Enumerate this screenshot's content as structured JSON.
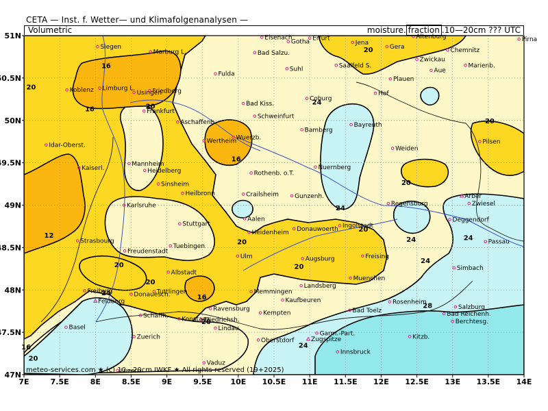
{
  "header": {
    "title": "CETA — Inst. f. Wetter— und Klimafolgenanalysen —",
    "product": "Volumetric",
    "variable_prefix": "moisture.",
    "variable_box": "fraction",
    "variable_suffix": ".10—20cm ??? UTC"
  },
  "footer": "meteo-services.com ★ (c) 10—20cm IWKF ★ All rights reserved (19+2025)",
  "colors": {
    "lt16": "#fbb70f",
    "16to20": "#fcd823",
    "20to24": "#fef8c9",
    "24to28": "#c8f4f6",
    "gt28": "#93e8ec",
    "rivers": "#3a4fcc",
    "borders": "#1a1a1a",
    "city_marker": "#e0208c"
  },
  "axes": {
    "lon_labels": [
      "7E",
      "7.5E",
      "8E",
      "8.5E",
      "9E",
      "9.5E",
      "10E",
      "10.5E",
      "11E",
      "11.5E",
      "12E",
      "12.5E",
      "13E",
      "13.5E",
      "14E"
    ],
    "lat_labels": [
      "51N",
      "50.5N",
      "50N",
      "49.5N",
      "49N",
      "48.5N",
      "48N",
      "47.5N",
      "47N"
    ]
  },
  "contour_labels": [
    {
      "t": "16",
      "lon": 8.15,
      "lat": 50.65
    },
    {
      "t": "20",
      "lon": 7.1,
      "lat": 50.4
    },
    {
      "t": "16",
      "lon": 7.92,
      "lat": 50.14
    },
    {
      "t": "20",
      "lon": 8.77,
      "lat": 50.17
    },
    {
      "t": "16",
      "lon": 9.97,
      "lat": 49.55
    },
    {
      "t": "20",
      "lon": 11.82,
      "lat": 50.84
    },
    {
      "t": "24",
      "lon": 11.1,
      "lat": 50.22
    },
    {
      "t": "20",
      "lon": 13.52,
      "lat": 50.0
    },
    {
      "t": "20",
      "lon": 12.35,
      "lat": 49.27
    },
    {
      "t": "12",
      "lon": 7.35,
      "lat": 48.65
    },
    {
      "t": "24",
      "lon": 11.43,
      "lat": 48.97
    },
    {
      "t": "20",
      "lon": 11.75,
      "lat": 48.72
    },
    {
      "t": "24",
      "lon": 12.42,
      "lat": 48.6
    },
    {
      "t": "24",
      "lon": 13.22,
      "lat": 48.62
    },
    {
      "t": "20",
      "lon": 10.05,
      "lat": 48.57
    },
    {
      "t": "20",
      "lon": 8.33,
      "lat": 48.3
    },
    {
      "t": "20",
      "lon": 10.85,
      "lat": 48.28
    },
    {
      "t": "24",
      "lon": 12.62,
      "lat": 48.35
    },
    {
      "t": "20",
      "lon": 8.77,
      "lat": 48.1
    },
    {
      "t": "16",
      "lon": 9.49,
      "lat": 47.92
    },
    {
      "t": "24",
      "lon": 8.15,
      "lat": 47.97
    },
    {
      "t": "28",
      "lon": 12.65,
      "lat": 47.82
    },
    {
      "t": "20",
      "lon": 9.55,
      "lat": 47.63
    },
    {
      "t": "24",
      "lon": 10.91,
      "lat": 47.35
    },
    {
      "t": "16",
      "lon": 7.03,
      "lat": 47.33
    },
    {
      "t": "20",
      "lon": 7.13,
      "lat": 47.2
    }
  ],
  "cities": [
    {
      "n": "Eisenach",
      "lon": 10.33,
      "lat": 50.98,
      "c": "#000"
    },
    {
      "n": "Erfurt",
      "lon": 11.0,
      "lat": 50.97,
      "c": "#000"
    },
    {
      "n": "Gotha",
      "lon": 10.7,
      "lat": 50.93,
      "c": "#000"
    },
    {
      "n": "Jena",
      "lon": 11.6,
      "lat": 50.92,
      "c": "#000"
    },
    {
      "n": "Altenburg",
      "lon": 12.45,
      "lat": 50.99,
      "c": "#000"
    },
    {
      "n": "Pirna",
      "lon": 13.93,
      "lat": 50.96,
      "c": "#000"
    },
    {
      "n": "Siegen",
      "lon": 8.03,
      "lat": 50.87,
      "c": "#000"
    },
    {
      "n": "Gera",
      "lon": 12.08,
      "lat": 50.87,
      "c": "#000"
    },
    {
      "n": "Chemnitz",
      "lon": 12.93,
      "lat": 50.83,
      "c": "#000"
    },
    {
      "n": "Marburg L.",
      "lon": 8.77,
      "lat": 50.81,
      "c": "#000"
    },
    {
      "n": "Bad Salzu.",
      "lon": 10.23,
      "lat": 50.8,
      "c": "#000"
    },
    {
      "n": "Saalfeld S.",
      "lon": 11.37,
      "lat": 50.65,
      "c": "#000"
    },
    {
      "n": "Zwickau",
      "lon": 12.5,
      "lat": 50.72,
      "c": "#000"
    },
    {
      "n": "Suhl",
      "lon": 10.68,
      "lat": 50.61,
      "c": "#000"
    },
    {
      "n": "Marienb.",
      "lon": 13.18,
      "lat": 50.65,
      "c": "#000"
    },
    {
      "n": "Aue",
      "lon": 12.7,
      "lat": 50.59,
      "c": "#000"
    },
    {
      "n": "Fulda",
      "lon": 9.68,
      "lat": 50.55,
      "c": "#000"
    },
    {
      "n": "Plauen",
      "lon": 12.13,
      "lat": 50.49,
      "c": "#000"
    },
    {
      "n": "Koblenz",
      "lon": 7.6,
      "lat": 50.36,
      "c": "#000"
    },
    {
      "n": "Limburg L.",
      "lon": 8.06,
      "lat": 50.38,
      "c": "#000"
    },
    {
      "n": "Friedberg",
      "lon": 8.76,
      "lat": 50.35,
      "c": "#000"
    },
    {
      "n": "Usingen",
      "lon": 8.54,
      "lat": 50.33,
      "c": "#000"
    },
    {
      "n": "Hof",
      "lon": 11.92,
      "lat": 50.32,
      "c": "#000"
    },
    {
      "n": "Coburg",
      "lon": 10.96,
      "lat": 50.26,
      "c": "#000"
    },
    {
      "n": "Bad Kiss.",
      "lon": 10.07,
      "lat": 50.2,
      "c": "#000"
    },
    {
      "n": "Frankfurt",
      "lon": 8.68,
      "lat": 50.11,
      "c": "#000"
    },
    {
      "n": "Aschaffenb.",
      "lon": 9.15,
      "lat": 49.98,
      "c": "#000"
    },
    {
      "n": "Schweinfurt",
      "lon": 10.23,
      "lat": 50.05,
      "c": "#000"
    },
    {
      "n": "Bayreuth",
      "lon": 11.58,
      "lat": 49.95,
      "c": "#000"
    },
    {
      "n": "Bamberg",
      "lon": 10.89,
      "lat": 49.89,
      "c": "#000"
    },
    {
      "n": "Idar-Oberst.",
      "lon": 7.31,
      "lat": 49.71,
      "c": "#000"
    },
    {
      "n": "Wertheim",
      "lon": 9.52,
      "lat": 49.76,
      "c": "#000"
    },
    {
      "n": "Wuerzb.",
      "lon": 9.93,
      "lat": 49.8,
      "c": "#000"
    },
    {
      "n": "Pilsen",
      "lon": 13.38,
      "lat": 49.75,
      "c": "#000"
    },
    {
      "n": "Weiden",
      "lon": 12.16,
      "lat": 49.67,
      "c": "#000"
    },
    {
      "n": "Mannheim",
      "lon": 8.47,
      "lat": 49.49,
      "c": "#000"
    },
    {
      "n": "Kaiserl.",
      "lon": 7.77,
      "lat": 49.44,
      "c": "#000"
    },
    {
      "n": "Heidelberg",
      "lon": 8.69,
      "lat": 49.41,
      "c": "#000"
    },
    {
      "n": "Nuernberg",
      "lon": 11.08,
      "lat": 49.45,
      "c": "#000"
    },
    {
      "n": "Rothenb. o.T.",
      "lon": 10.18,
      "lat": 49.38,
      "c": "#000"
    },
    {
      "n": "Sinsheim",
      "lon": 8.88,
      "lat": 49.25,
      "c": "#000"
    },
    {
      "n": "Heilbronn",
      "lon": 9.22,
      "lat": 49.14,
      "c": "#000"
    },
    {
      "n": "Crailsheim",
      "lon": 10.07,
      "lat": 49.13,
      "c": "#000"
    },
    {
      "n": "Gunzenh.",
      "lon": 10.75,
      "lat": 49.11,
      "c": "#000"
    },
    {
      "n": "Regensburg",
      "lon": 12.1,
      "lat": 49.02,
      "c": "#000"
    },
    {
      "n": "Karlsruhe",
      "lon": 8.4,
      "lat": 49.0,
      "c": "#000"
    },
    {
      "n": "Aalen",
      "lon": 10.09,
      "lat": 48.84,
      "c": "#000"
    },
    {
      "n": "Deggendorf",
      "lon": 12.96,
      "lat": 48.83,
      "c": "#000"
    },
    {
      "n": "Stuttgart",
      "lon": 9.18,
      "lat": 48.78,
      "c": "#000"
    },
    {
      "n": "Heidenheim",
      "lon": 10.15,
      "lat": 48.68,
      "c": "#000"
    },
    {
      "n": "Donauwoerth",
      "lon": 10.78,
      "lat": 48.72,
      "c": "#000"
    },
    {
      "n": "Ingolstadt",
      "lon": 11.42,
      "lat": 48.76,
      "c": "#000"
    },
    {
      "n": "Passau",
      "lon": 13.46,
      "lat": 48.57,
      "c": "#000"
    },
    {
      "n": "Strasbourg",
      "lon": 7.75,
      "lat": 48.58,
      "c": "#000"
    },
    {
      "n": "Tuebingen",
      "lon": 9.05,
      "lat": 48.52,
      "c": "#000"
    },
    {
      "n": "Freudenstadt",
      "lon": 8.41,
      "lat": 48.46,
      "c": "#000"
    },
    {
      "n": "Augsburg",
      "lon": 10.9,
      "lat": 48.37,
      "c": "#000"
    },
    {
      "n": "Freising",
      "lon": 11.74,
      "lat": 48.4,
      "c": "#000"
    },
    {
      "n": "Ulm",
      "lon": 9.99,
      "lat": 48.4,
      "c": "#000"
    },
    {
      "n": "Simbach",
      "lon": 13.02,
      "lat": 48.26,
      "c": "#000"
    },
    {
      "n": "Albstadt",
      "lon": 9.02,
      "lat": 48.21,
      "c": "#000"
    },
    {
      "n": "Muenchen",
      "lon": 11.57,
      "lat": 48.14,
      "c": "#000"
    },
    {
      "n": "Tuttlingen",
      "lon": 8.82,
      "lat": 47.98,
      "c": "#000"
    },
    {
      "n": "Freiburg",
      "lon": 7.85,
      "lat": 47.99,
      "c": "#000"
    },
    {
      "n": "Donauesch.",
      "lon": 8.5,
      "lat": 47.95,
      "c": "#000"
    },
    {
      "n": "Memmingen",
      "lon": 10.18,
      "lat": 47.98,
      "c": "#000"
    },
    {
      "n": "Landsberg",
      "lon": 10.88,
      "lat": 48.05,
      "c": "#000"
    },
    {
      "n": "Kaufbeuren",
      "lon": 10.62,
      "lat": 47.88,
      "c": "#000"
    },
    {
      "n": "Rosenheim",
      "lon": 12.12,
      "lat": 47.86,
      "c": "#000"
    },
    {
      "n": "Feldberg",
      "lon": 8.0,
      "lat": 47.87,
      "c": "#1aa03a"
    },
    {
      "n": "Salzburg",
      "lon": 13.04,
      "lat": 47.8,
      "c": "#000"
    },
    {
      "n": "Ravensburg",
      "lon": 9.61,
      "lat": 47.78,
      "c": "#000"
    },
    {
      "n": "Schaffh.",
      "lon": 8.63,
      "lat": 47.7,
      "c": "#000"
    },
    {
      "n": "Kempten",
      "lon": 10.31,
      "lat": 47.73,
      "c": "#000"
    },
    {
      "n": "Bad Toelz",
      "lon": 11.56,
      "lat": 47.76,
      "c": "#000"
    },
    {
      "n": "Bad Reichenh.",
      "lon": 12.88,
      "lat": 47.72,
      "c": "#000"
    },
    {
      "n": "Konstanz",
      "lon": 9.17,
      "lat": 47.66,
      "c": "#000"
    },
    {
      "n": "Friedrichsh.",
      "lon": 9.48,
      "lat": 47.65,
      "c": "#000"
    },
    {
      "n": "Berchtesg.",
      "lon": 13.0,
      "lat": 47.63,
      "c": "#000"
    },
    {
      "n": "Basel",
      "lon": 7.59,
      "lat": 47.56,
      "c": "#000"
    },
    {
      "n": "Lindau",
      "lon": 9.68,
      "lat": 47.55,
      "c": "#000"
    },
    {
      "n": "Garm.-Part.",
      "lon": 11.1,
      "lat": 47.49,
      "c": "#000"
    },
    {
      "n": "Zuerich",
      "lon": 8.54,
      "lat": 47.45,
      "c": "#000"
    },
    {
      "n": "Oberstdorf",
      "lon": 10.28,
      "lat": 47.41,
      "c": "#000"
    },
    {
      "n": "Zugspitze",
      "lon": 10.98,
      "lat": 47.42,
      "c": "#1aa03a"
    },
    {
      "n": "Kitzb.",
      "lon": 12.4,
      "lat": 47.45,
      "c": "#000"
    },
    {
      "n": "Innsbruck",
      "lon": 11.39,
      "lat": 47.27,
      "c": "#000"
    },
    {
      "n": "Luzern",
      "lon": 8.31,
      "lat": 47.05,
      "c": "#000"
    },
    {
      "n": "Vaduz",
      "lon": 9.52,
      "lat": 47.14,
      "c": "#000"
    },
    {
      "n": "Arber",
      "lon": 13.13,
      "lat": 49.11,
      "c": "#1aa03a"
    },
    {
      "n": "Zwiesel",
      "lon": 13.23,
      "lat": 49.02,
      "c": "#000"
    }
  ]
}
